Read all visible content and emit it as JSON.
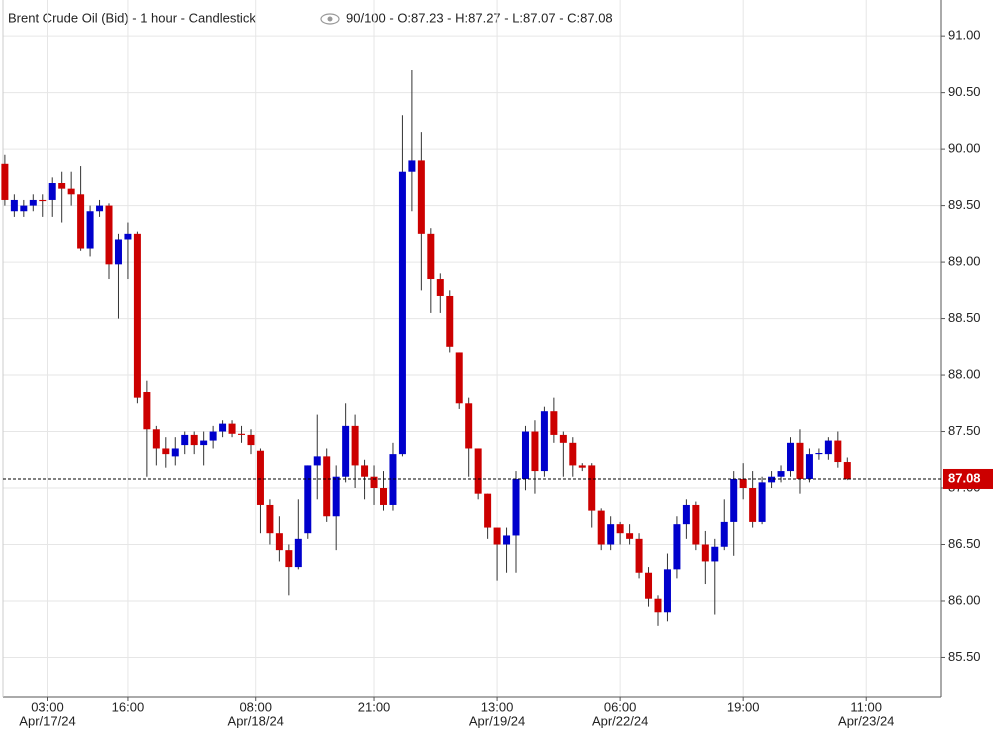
{
  "chart_data": {
    "type": "candlestick",
    "title": "Brent Crude Oil (Bid) - 1 hour - Candlestick",
    "legend": "90/100 - O:87.23 - H:87.27 - L:87.07 - C:87.08",
    "up_color": "#0000cc",
    "down_color": "#cc0000",
    "grid": true,
    "ylim": [
      85.15,
      91.32
    ],
    "yticks": [
      {
        "value": 85.5,
        "label": "85.50"
      },
      {
        "value": 86,
        "label": "86.00"
      },
      {
        "value": 86.5,
        "label": "86.50"
      },
      {
        "value": 87,
        "label": "87.00"
      },
      {
        "value": 87.5,
        "label": "87.50"
      },
      {
        "value": 88,
        "label": "88.00"
      },
      {
        "value": 88.5,
        "label": "88.50"
      },
      {
        "value": 89,
        "label": "89.00"
      },
      {
        "value": 89.5,
        "label": "89.50"
      },
      {
        "value": 90,
        "label": "90.00"
      },
      {
        "value": 90.5,
        "label": "90.50"
      },
      {
        "value": 91,
        "label": "91.00"
      }
    ],
    "xlim": [
      -0.2,
      98.9
    ],
    "xticks": [
      {
        "value": 4.5,
        "label": "03:00"
      },
      {
        "value": 13,
        "label": "16:00"
      },
      {
        "value": 26.5,
        "label": "08:00"
      },
      {
        "value": 39,
        "label": "21:00"
      },
      {
        "value": 52,
        "label": "13:00"
      },
      {
        "value": 65,
        "label": "06:00"
      },
      {
        "value": 78,
        "label": "19:00"
      },
      {
        "value": 91,
        "label": "11:00"
      }
    ],
    "xdates": [
      {
        "value": 4.5,
        "label": "Apr/17/24"
      },
      {
        "value": 26.5,
        "label": "Apr/18/24"
      },
      {
        "value": 52,
        "label": "Apr/19/24"
      },
      {
        "value": 65,
        "label": "Apr/22/24"
      },
      {
        "value": 91,
        "label": "Apr/23/24"
      }
    ],
    "open": [
      89.87,
      89.45,
      89.45,
      89.5,
      89.55,
      89.55,
      89.7,
      89.65,
      89.6,
      89.12,
      89.45,
      89.5,
      88.98,
      89.2,
      89.25,
      87.85,
      87.52,
      87.35,
      87.28,
      87.38,
      87.47,
      87.38,
      87.42,
      87.5,
      87.57,
      87.48,
      87.47,
      87.33,
      86.85,
      86.6,
      86.45,
      86.3,
      86.6,
      87.2,
      87.28,
      86.75,
      87.1,
      87.55,
      87.2,
      87.1,
      87.0,
      86.85,
      87.3,
      89.8,
      89.9,
      89.25,
      88.85,
      88.7,
      88.2,
      87.75,
      87.35,
      86.95,
      86.65,
      86.5,
      86.58,
      87.08,
      87.5,
      87.15,
      87.68,
      87.47,
      87.4,
      87.2,
      87.2,
      86.8,
      86.5,
      86.68,
      86.6,
      86.55,
      86.25,
      86.02,
      85.9,
      86.28,
      86.68,
      86.85,
      86.5,
      86.35,
      86.48,
      86.7,
      87.08,
      87.0,
      86.7,
      87.05,
      87.1,
      87.15,
      87.4,
      87.08,
      87.3,
      87.3,
      87.42,
      87.23
    ],
    "high": [
      89.95,
      89.6,
      89.55,
      89.6,
      89.6,
      89.75,
      89.8,
      89.8,
      89.85,
      89.5,
      89.55,
      89.52,
      89.25,
      89.35,
      89.27,
      87.95,
      87.55,
      87.45,
      87.45,
      87.5,
      87.5,
      87.5,
      87.55,
      87.6,
      87.6,
      87.55,
      87.52,
      87.35,
      86.9,
      86.75,
      86.5,
      86.9,
      87.2,
      87.65,
      87.35,
      87.2,
      87.75,
      87.65,
      87.25,
      87.2,
      87.15,
      87.4,
      90.3,
      90.7,
      90.15,
      89.3,
      88.9,
      88.75,
      88.2,
      87.8,
      87.35,
      86.95,
      86.65,
      86.65,
      87.15,
      87.55,
      87.6,
      87.72,
      87.8,
      87.5,
      87.45,
      87.22,
      87.22,
      86.82,
      86.75,
      86.7,
      86.68,
      86.6,
      86.3,
      86.05,
      86.42,
      86.75,
      86.9,
      86.88,
      86.62,
      86.55,
      86.9,
      87.15,
      87.22,
      87.15,
      87.1,
      87.15,
      87.2,
      87.45,
      87.52,
      87.35,
      87.35,
      87.45,
      87.5,
      87.27
    ],
    "low": [
      89.5,
      89.4,
      89.4,
      89.45,
      89.4,
      89.4,
      89.35,
      89.5,
      89.1,
      89.05,
      89.4,
      88.85,
      88.5,
      88.85,
      87.75,
      87.1,
      87.2,
      87.18,
      87.2,
      87.3,
      87.3,
      87.2,
      87.35,
      87.45,
      87.45,
      87.4,
      87.3,
      86.6,
      86.5,
      86.35,
      86.05,
      86.28,
      86.55,
      86.9,
      86.7,
      86.45,
      87.05,
      87.0,
      86.9,
      86.85,
      86.8,
      86.8,
      87.28,
      89.45,
      88.75,
      88.55,
      88.55,
      88.2,
      87.7,
      87.1,
      86.9,
      86.55,
      86.18,
      86.25,
      86.25,
      86.98,
      86.95,
      87.1,
      87.4,
      87.1,
      87.1,
      87.15,
      86.65,
      86.45,
      86.45,
      86.5,
      86.5,
      86.2,
      85.95,
      85.78,
      85.82,
      86.2,
      86.55,
      86.45,
      86.15,
      85.88,
      86.45,
      86.4,
      86.9,
      86.65,
      86.68,
      87.0,
      87.05,
      87.1,
      86.95,
      87.05,
      87.25,
      87.25,
      87.18,
      87.07
    ],
    "close": [
      89.55,
      89.55,
      89.5,
      89.55,
      89.54,
      89.7,
      89.65,
      89.6,
      89.12,
      89.45,
      89.5,
      88.98,
      89.2,
      89.25,
      87.8,
      87.52,
      87.35,
      87.3,
      87.35,
      87.47,
      87.38,
      87.42,
      87.5,
      87.57,
      87.48,
      87.47,
      87.38,
      86.85,
      86.6,
      86.45,
      86.3,
      86.55,
      87.2,
      87.28,
      86.75,
      87.1,
      87.55,
      87.2,
      87.1,
      87.0,
      86.85,
      87.3,
      89.8,
      89.9,
      89.25,
      88.85,
      88.7,
      88.25,
      87.75,
      87.35,
      86.95,
      86.65,
      86.5,
      86.58,
      87.08,
      87.5,
      87.15,
      87.68,
      87.47,
      87.4,
      87.2,
      87.18,
      86.8,
      86.5,
      86.68,
      86.6,
      86.55,
      86.25,
      86.02,
      85.9,
      86.28,
      86.68,
      86.85,
      86.5,
      86.35,
      86.48,
      86.7,
      87.08,
      87.0,
      86.7,
      87.05,
      87.1,
      87.15,
      87.4,
      87.08,
      87.3,
      87.31,
      87.42,
      87.23,
      87.08
    ]
  }
}
